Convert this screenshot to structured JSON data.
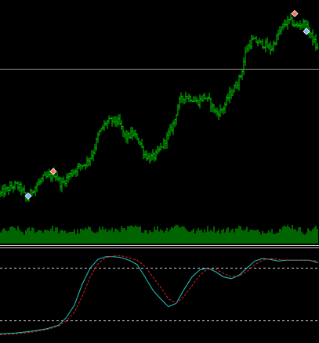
{
  "colors": {
    "background": "#000000",
    "bar": "#00c800",
    "volume": "#00c800",
    "level_line": "#8a8a8a",
    "separator": "#c8c8c8",
    "main_line": "#20c8c8",
    "signal_line": "#e02020",
    "oscillator_level": "#c8c8c8",
    "sell_marker": "#ff7050",
    "buy_marker": "#80b0ff"
  },
  "icons": {
    "sell_marker": "sell-arrow-icon",
    "buy_marker": "buy-arrow-icon"
  },
  "chart_data": [
    {
      "type": "bar",
      "role": "price-bars",
      "ylim": [
        0,
        100
      ],
      "close_points": [
        [
          0,
          15
        ],
        [
          10,
          17
        ],
        [
          20,
          19
        ],
        [
          28,
          17
        ],
        [
          34,
          12
        ],
        [
          42,
          17
        ],
        [
          55,
          22
        ],
        [
          65,
          23
        ],
        [
          70,
          24
        ],
        [
          78,
          19
        ],
        [
          90,
          24
        ],
        [
          100,
          27
        ],
        [
          110,
          29
        ],
        [
          118,
          33
        ],
        [
          126,
          42
        ],
        [
          135,
          47
        ],
        [
          145,
          48
        ],
        [
          152,
          47
        ],
        [
          160,
          40
        ],
        [
          168,
          42
        ],
        [
          176,
          40
        ],
        [
          184,
          33
        ],
        [
          190,
          31
        ],
        [
          198,
          32
        ],
        [
          206,
          36
        ],
        [
          214,
          41
        ],
        [
          222,
          47
        ],
        [
          228,
          56
        ],
        [
          236,
          59
        ],
        [
          244,
          58
        ],
        [
          252,
          56
        ],
        [
          260,
          59
        ],
        [
          268,
          56
        ],
        [
          276,
          51
        ],
        [
          284,
          53
        ],
        [
          292,
          59
        ],
        [
          300,
          63
        ],
        [
          308,
          69
        ],
        [
          314,
          80
        ],
        [
          322,
          84
        ],
        [
          330,
          83
        ],
        [
          338,
          82
        ],
        [
          346,
          80
        ],
        [
          354,
          86
        ],
        [
          362,
          91
        ],
        [
          370,
          93
        ],
        [
          378,
          90
        ],
        [
          386,
          92
        ],
        [
          394,
          88
        ],
        [
          400,
          84
        ],
        [
          406,
          79
        ]
      ],
      "horizontal_level": 71,
      "markers": [
        {
          "type": "sell",
          "x": 68,
          "y": 25
        },
        {
          "type": "buy",
          "x": 36,
          "y": 14
        },
        {
          "type": "sell",
          "x": 376,
          "y": 96
        },
        {
          "type": "buy",
          "x": 391,
          "y": 88
        }
      ]
    },
    {
      "type": "bar",
      "role": "volume",
      "ylim": [
        0,
        100
      ],
      "points": [
        [
          0,
          55
        ],
        [
          10,
          60
        ],
        [
          20,
          72
        ],
        [
          30,
          50
        ],
        [
          40,
          66
        ],
        [
          50,
          58
        ],
        [
          60,
          64
        ],
        [
          70,
          70
        ],
        [
          80,
          48
        ],
        [
          90,
          58
        ],
        [
          100,
          52
        ],
        [
          110,
          66
        ],
        [
          120,
          60
        ],
        [
          130,
          72
        ],
        [
          140,
          55
        ],
        [
          150,
          68
        ],
        [
          160,
          62
        ],
        [
          170,
          75
        ],
        [
          180,
          66
        ],
        [
          190,
          58
        ],
        [
          200,
          70
        ],
        [
          210,
          60
        ],
        [
          220,
          78
        ],
        [
          230,
          84
        ],
        [
          240,
          62
        ],
        [
          250,
          55
        ],
        [
          260,
          64
        ],
        [
          270,
          70
        ],
        [
          280,
          58
        ],
        [
          290,
          62
        ],
        [
          300,
          66
        ],
        [
          310,
          74
        ],
        [
          320,
          58
        ],
        [
          330,
          52
        ],
        [
          340,
          62
        ],
        [
          350,
          58
        ],
        [
          360,
          68
        ],
        [
          370,
          84
        ],
        [
          380,
          66
        ],
        [
          390,
          54
        ],
        [
          400,
          70
        ]
      ]
    },
    {
      "type": "line",
      "role": "oscillator",
      "ylim": [
        0,
        100
      ],
      "levels": [
        80,
        20
      ],
      "series": [
        {
          "points": [
            [
              0,
              5
            ],
            [
              20,
              6
            ],
            [
              40,
              8
            ],
            [
              60,
              11
            ],
            [
              75,
              15
            ],
            [
              85,
              24
            ],
            [
              95,
              38
            ],
            [
              105,
              62
            ],
            [
              115,
              80
            ],
            [
              125,
              90
            ],
            [
              135,
              93
            ],
            [
              145,
              93
            ],
            [
              155,
              92
            ],
            [
              165,
              89
            ],
            [
              175,
              84
            ],
            [
              185,
              70
            ],
            [
              195,
              55
            ],
            [
              205,
              45
            ],
            [
              215,
              36
            ],
            [
              225,
              40
            ],
            [
              235,
              56
            ],
            [
              245,
              70
            ],
            [
              255,
              78
            ],
            [
              265,
              80
            ],
            [
              275,
              76
            ],
            [
              285,
              70
            ],
            [
              295,
              68
            ],
            [
              305,
              72
            ],
            [
              315,
              80
            ],
            [
              325,
              88
            ],
            [
              335,
              91
            ],
            [
              345,
              90
            ],
            [
              355,
              88
            ],
            [
              365,
              89
            ],
            [
              375,
              89
            ],
            [
              385,
              89
            ],
            [
              395,
              89
            ],
            [
              406,
              86
            ]
          ]
        },
        {
          "points": [
            [
              0,
              4
            ],
            [
              20,
              5
            ],
            [
              40,
              7
            ],
            [
              60,
              10
            ],
            [
              75,
              14
            ],
            [
              85,
              20
            ],
            [
              95,
              30
            ],
            [
              105,
              48
            ],
            [
              115,
              70
            ],
            [
              125,
              85
            ],
            [
              135,
              92
            ],
            [
              145,
              94
            ],
            [
              155,
              94
            ],
            [
              165,
              92
            ],
            [
              175,
              89
            ],
            [
              185,
              82
            ],
            [
              195,
              70
            ],
            [
              205,
              58
            ],
            [
              215,
              45
            ],
            [
              225,
              40
            ],
            [
              235,
              48
            ],
            [
              245,
              60
            ],
            [
              255,
              72
            ],
            [
              265,
              79
            ],
            [
              275,
              79
            ],
            [
              285,
              74
            ],
            [
              295,
              70
            ],
            [
              305,
              71
            ],
            [
              315,
              76
            ],
            [
              325,
              84
            ],
            [
              335,
              89
            ],
            [
              345,
              91
            ],
            [
              355,
              90
            ],
            [
              365,
              89
            ],
            [
              375,
              89
            ],
            [
              385,
              89
            ],
            [
              395,
              89
            ],
            [
              406,
              88
            ]
          ]
        }
      ]
    }
  ]
}
